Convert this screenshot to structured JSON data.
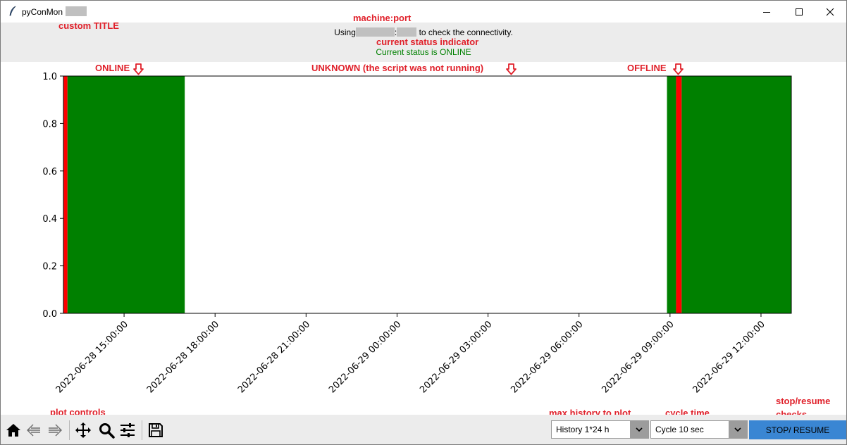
{
  "window": {
    "title": "pyConMon",
    "controls": [
      "minimize-icon",
      "maximize-icon",
      "close-icon"
    ]
  },
  "header": {
    "connectivity_prefix": "Using",
    "connectivity_separator": ":",
    "connectivity_suffix": "to check the connectivity.",
    "status_text": "Current status is ONLINE",
    "status_color": "#008000"
  },
  "annotations": {
    "custom_title": "custom TITLE",
    "machine_port": "machine:port",
    "current_status": "current status indicator",
    "online": "ONLINE",
    "unknown": "UNKNOWN (the script was not running)",
    "offline": "OFFLINE",
    "plot_controls": "plot controls",
    "max_history": "max history to plot",
    "cycle_time": "cycle time",
    "stop_resume_1": "stop/resume",
    "stop_resume_2": "checks",
    "color": "#e0202a"
  },
  "chart_data": {
    "type": "bar",
    "title": "",
    "xlabel": "",
    "ylabel": "",
    "ylim": [
      0,
      1.0
    ],
    "yticks": [
      "0.0",
      "0.2",
      "0.4",
      "0.6",
      "0.8",
      "1.0"
    ],
    "xlim": [
      "2022-06-28 13:00:00",
      "2022-06-29 13:00:00"
    ],
    "xticks": [
      "2022-06-28 15:00:00",
      "2022-06-28 18:00:00",
      "2022-06-28 21:00:00",
      "2022-06-29 00:00:00",
      "2022-06-29 03:00:00",
      "2022-06-29 06:00:00",
      "2022-06-29 09:00:00",
      "2022-06-29 12:00:00"
    ],
    "grid": false,
    "legend": "none",
    "colors": {
      "online": "#008000",
      "offline": "#ff0000"
    },
    "segments": [
      {
        "status": "offline",
        "start": "2022-06-28 13:00:00",
        "end": "2022-06-28 13:08:00"
      },
      {
        "status": "online",
        "start": "2022-06-28 13:08:00",
        "end": "2022-06-28 17:00:00"
      },
      {
        "status": "online",
        "start": "2022-06-29 08:54:00",
        "end": "2022-06-29 09:12:00"
      },
      {
        "status": "offline",
        "start": "2022-06-29 09:12:00",
        "end": "2022-06-29 09:23:00"
      },
      {
        "status": "online",
        "start": "2022-06-29 09:23:00",
        "end": "2022-06-29 13:00:00"
      }
    ]
  },
  "toolbar": {
    "tools": [
      "home-icon",
      "back-icon",
      "forward-icon",
      "pan-icon",
      "zoom-icon",
      "configure-subplots-icon",
      "save-icon"
    ]
  },
  "controls": {
    "history_value": "History 1*24 h",
    "cycle_value": "Cycle 10 sec",
    "stop_resume_label": "STOP/ RESUME"
  }
}
